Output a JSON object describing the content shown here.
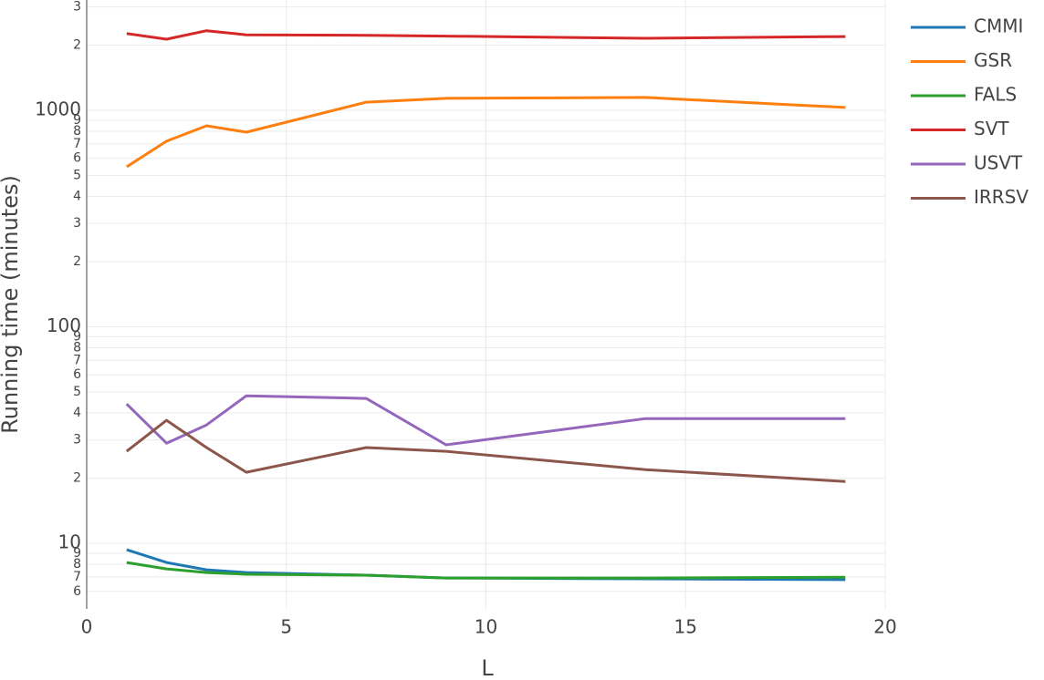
{
  "chart_data": {
    "type": "line",
    "x_label": "L",
    "y_label": "Running time (minutes)",
    "x": [
      1,
      2,
      3,
      4,
      7,
      9,
      14,
      19
    ],
    "xlim": [
      0,
      20
    ],
    "xticks": [
      0,
      5,
      10,
      15,
      20
    ],
    "ylim": [
      4.98,
      3230
    ],
    "log_y": true,
    "grid": true,
    "legend_position": "right",
    "yticks": [
      {
        "value": 6,
        "label": "6"
      },
      {
        "value": 7,
        "label": "7"
      },
      {
        "value": 8,
        "label": "8"
      },
      {
        "value": 9,
        "label": "9"
      },
      10,
      {
        "value": 20,
        "label": "2"
      },
      {
        "value": 30,
        "label": "3"
      },
      {
        "value": 40,
        "label": "4"
      },
      {
        "value": 50,
        "label": "5"
      },
      {
        "value": 60,
        "label": "6"
      },
      {
        "value": 70,
        "label": "7"
      },
      {
        "value": 80,
        "label": "8"
      },
      {
        "value": 90,
        "label": "9"
      },
      100,
      {
        "value": 200,
        "label": "2"
      },
      {
        "value": 300,
        "label": "3"
      },
      {
        "value": 400,
        "label": "4"
      },
      {
        "value": 500,
        "label": "5"
      },
      {
        "value": 600,
        "label": "6"
      },
      {
        "value": 700,
        "label": "7"
      },
      {
        "value": 800,
        "label": "8"
      },
      {
        "value": 900,
        "label": "9"
      },
      1000,
      {
        "value": 2000,
        "label": "2"
      },
      {
        "value": 3000,
        "label": "3"
      }
    ],
    "series": [
      {
        "name": "CMMI",
        "color": "#1f77b4",
        "values": [
          9.34,
          8.16,
          7.55,
          7.33,
          7.13,
          6.92,
          6.86,
          6.8
        ]
      },
      {
        "name": "GSR",
        "color": "#ff7f0e",
        "values": [
          548,
          720,
          848,
          792,
          1090,
          1135,
          1146,
          1030
        ]
      },
      {
        "name": "FALS",
        "color": "#2ca02c",
        "values": [
          8.16,
          7.62,
          7.33,
          7.2,
          7.13,
          6.92,
          6.92,
          6.98
        ]
      },
      {
        "name": "SVT",
        "color": "#d62728",
        "values": [
          2260,
          2130,
          2330,
          2230,
          2220,
          2200,
          2150,
          2190
        ]
      },
      {
        "name": "USVT",
        "color": "#9467bd",
        "values": [
          44,
          29,
          35.2,
          48,
          46.7,
          28.5,
          37.7,
          37.7
        ]
      },
      {
        "name": "IRRSV",
        "color": "#8c564b",
        "values": [
          26.6,
          37,
          27.7,
          21.3,
          27.7,
          26.6,
          21.9,
          19.3
        ]
      }
    ]
  }
}
